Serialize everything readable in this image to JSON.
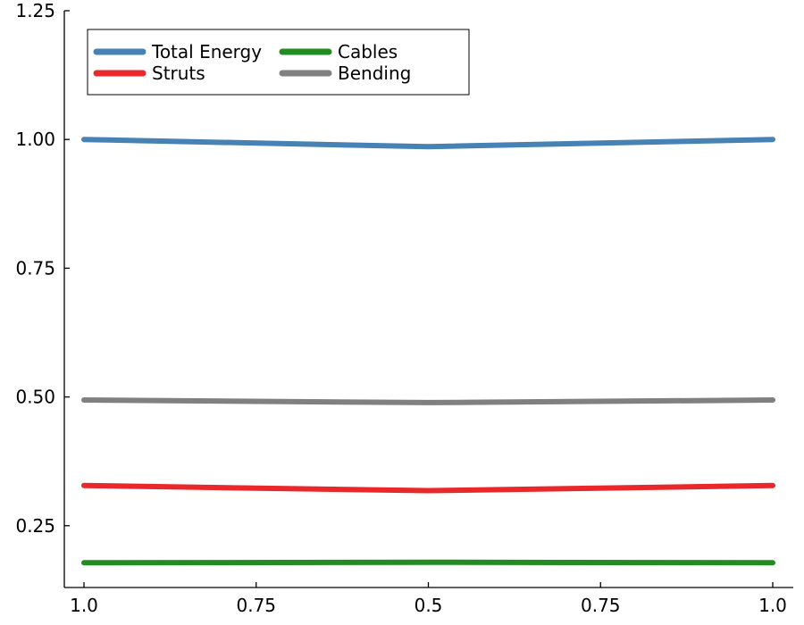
{
  "chart_data": {
    "type": "line",
    "title": "",
    "xlabel": "",
    "ylabel": "",
    "x": [
      0,
      0.5,
      1,
      1.5,
      2
    ],
    "x_tick_labels": [
      "1.0",
      "0.75",
      "0.5",
      "0.75",
      "1.0"
    ],
    "ylim": [
      0.13,
      1.25
    ],
    "y_ticks": [
      0.25,
      0.5,
      0.75,
      1.0,
      1.25
    ],
    "y_tick_labels": [
      "0.25",
      "0.50",
      "0.75",
      "1.00",
      "1.25"
    ],
    "grid": false,
    "legend": {
      "position": "top-left",
      "columns": 2
    },
    "series": [
      {
        "name": "Total Energy",
        "color": "#4682b4",
        "x": [
          0,
          1,
          2
        ],
        "values": [
          1.0,
          0.986,
          1.0
        ]
      },
      {
        "name": "Cables",
        "color": "#228b22",
        "x": [
          0,
          1,
          2
        ],
        "values": [
          0.178,
          0.179,
          0.178
        ]
      },
      {
        "name": "Struts",
        "color": "#e8282b",
        "x": [
          0,
          1,
          2
        ],
        "values": [
          0.328,
          0.318,
          0.328
        ]
      },
      {
        "name": "Bending",
        "color": "#808080",
        "x": [
          0,
          1,
          2
        ],
        "values": [
          0.494,
          0.489,
          0.494
        ]
      }
    ]
  }
}
